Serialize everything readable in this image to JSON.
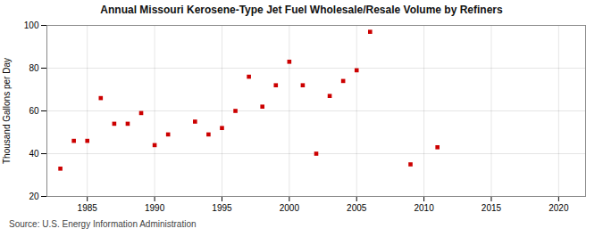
{
  "chart_data": {
    "type": "scatter",
    "title": "Annual Missouri Kerosene-Type Jet Fuel Wholesale/Resale Volume by Refiners",
    "ylabel": "Thousand Gallons per Day",
    "annotation": "Source: U.S. Energy Information Administration",
    "x": [
      1983,
      1984,
      1985,
      1986,
      1987,
      1988,
      1989,
      1990,
      1991,
      1993,
      1994,
      1995,
      1996,
      1997,
      1998,
      1999,
      2000,
      2001,
      2002,
      2003,
      2004,
      2005,
      2006,
      2009,
      2011
    ],
    "values": [
      33,
      46,
      46,
      66,
      54,
      54,
      59,
      44,
      49,
      55,
      49,
      52,
      60,
      76,
      62,
      72,
      83,
      72,
      40,
      67,
      74,
      79,
      97,
      35,
      43
    ],
    "color": "#cc0000",
    "marker": "square",
    "xlim": [
      1982,
      2022
    ],
    "ylim": [
      20,
      100
    ],
    "xticks": [
      1985,
      1990,
      1995,
      2000,
      2005,
      2010,
      2015,
      2020
    ],
    "yticks": [
      20,
      40,
      60,
      80,
      100
    ],
    "grid": true
  }
}
